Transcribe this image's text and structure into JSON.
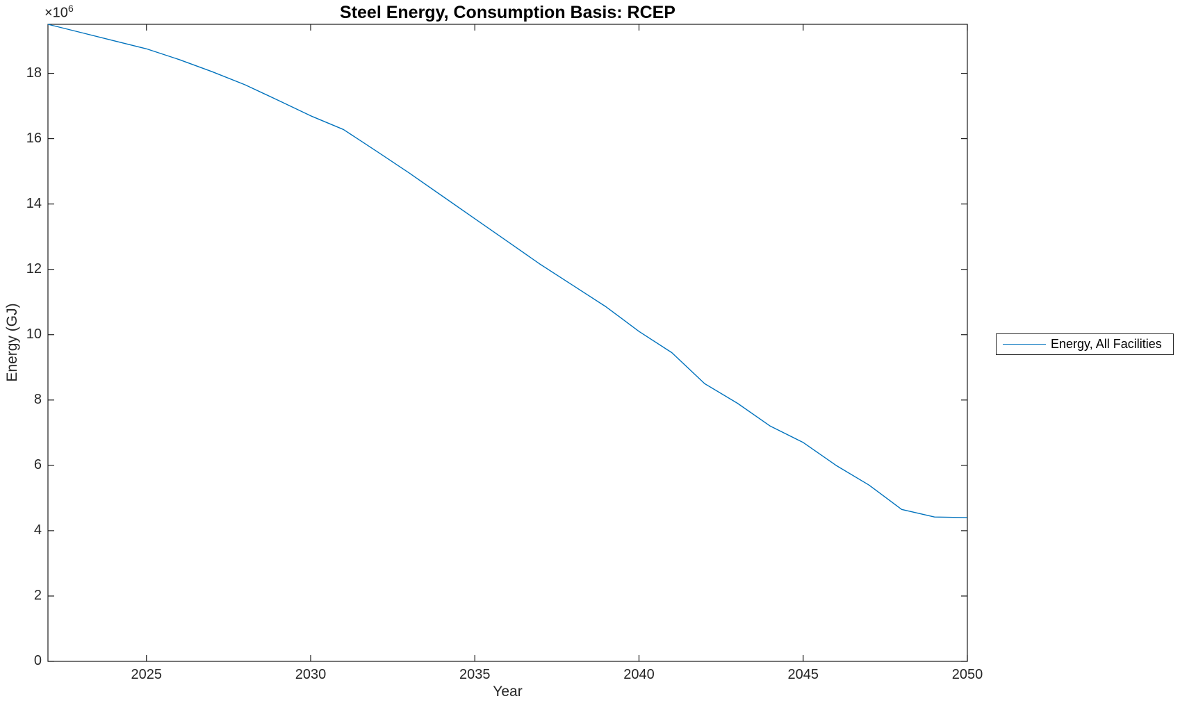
{
  "chart_data": {
    "type": "line",
    "title": "Steel Energy, Consumption Basis: RCEP",
    "xlabel": "Year",
    "ylabel": "Energy (GJ)",
    "y_multiplier": {
      "prefix": "×10",
      "exponent": "6"
    },
    "xlim": [
      2022,
      2050
    ],
    "ylim": [
      0,
      19500000
    ],
    "grid": false,
    "x_ticks": [
      {
        "value": 2025,
        "label": "2025"
      },
      {
        "value": 2030,
        "label": "2030"
      },
      {
        "value": 2035,
        "label": "2035"
      },
      {
        "value": 2040,
        "label": "2040"
      },
      {
        "value": 2045,
        "label": "2045"
      },
      {
        "value": 2050,
        "label": "2050"
      }
    ],
    "y_ticks": [
      {
        "value": 0,
        "label": "0"
      },
      {
        "value": 2000000,
        "label": "2"
      },
      {
        "value": 4000000,
        "label": "4"
      },
      {
        "value": 6000000,
        "label": "6"
      },
      {
        "value": 8000000,
        "label": "8"
      },
      {
        "value": 10000000,
        "label": "10"
      },
      {
        "value": 12000000,
        "label": "12"
      },
      {
        "value": 14000000,
        "label": "14"
      },
      {
        "value": 16000000,
        "label": "16"
      },
      {
        "value": 18000000,
        "label": "18"
      }
    ],
    "legend": {
      "position": "outside-right",
      "bordered": true
    },
    "series": [
      {
        "name": "Energy, All Facilities",
        "color": "#0072BD",
        "x": [
          2022,
          2023,
          2024,
          2025,
          2026,
          2027,
          2028,
          2029,
          2030,
          2031,
          2032,
          2033,
          2034,
          2035,
          2036,
          2037,
          2038,
          2039,
          2040,
          2041,
          2042,
          2043,
          2044,
          2045,
          2046,
          2047,
          2048,
          2049,
          2050
        ],
        "y": [
          19500000,
          19250000,
          19000000,
          18750000,
          18420000,
          18050000,
          17650000,
          17180000,
          16700000,
          16280000,
          15620000,
          14950000,
          14250000,
          13550000,
          12850000,
          12150000,
          11500000,
          10850000,
          10100000,
          9450000,
          8500000,
          7900000,
          7200000,
          6700000,
          6000000,
          5400000,
          4650000,
          4420000,
          4400000
        ]
      }
    ],
    "axis_color": "#1a1a1a"
  }
}
